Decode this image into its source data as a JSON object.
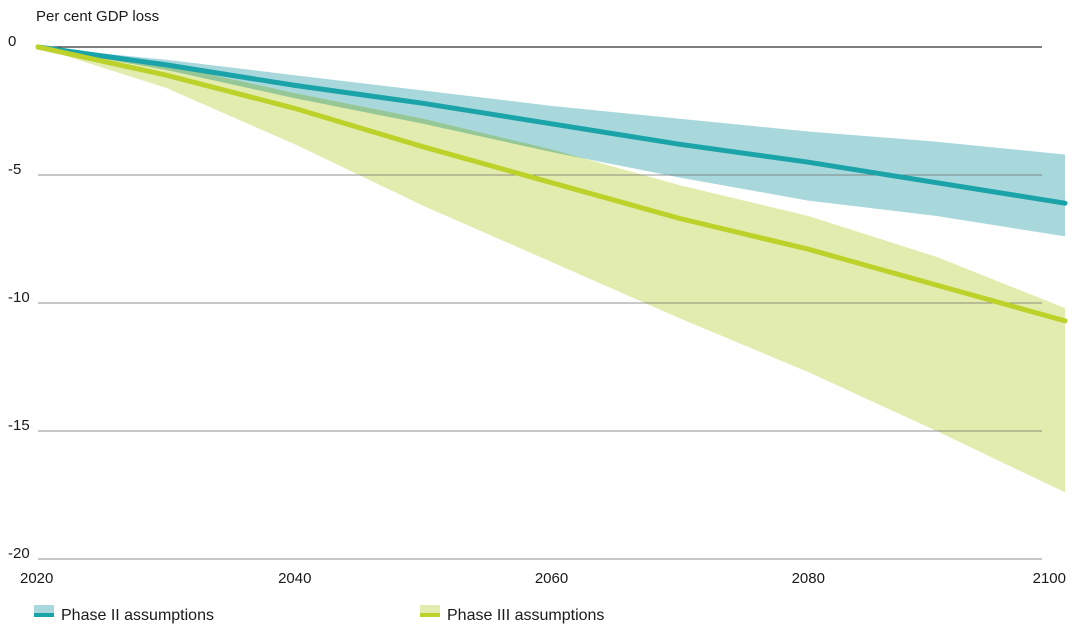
{
  "chart_data": {
    "type": "area",
    "title": "",
    "xlabel": "",
    "ylabel": "Per cent GDP loss",
    "xlim": [
      2020,
      2100
    ],
    "ylim": [
      -20,
      0
    ],
    "xticks": [
      "2020",
      "2040",
      "2060",
      "2080",
      "2100"
    ],
    "yticks": [
      "0",
      "-5",
      "-10",
      "-15",
      "-20"
    ],
    "grid": "horizontal",
    "legend_position": "bottom",
    "x": [
      2020,
      2030,
      2040,
      2050,
      2060,
      2070,
      2080,
      2090,
      2100
    ],
    "series": [
      {
        "name": "Phase II assumptions",
        "color": "#1aa3a8",
        "band_color": "#a9d8dc",
        "values": [
          0,
          -0.7,
          -1.5,
          -2.2,
          -3.0,
          -3.8,
          -4.5,
          -5.3,
          -6.1
        ],
        "band_upper": [
          0,
          -0.5,
          -1.1,
          -1.7,
          -2.3,
          -2.8,
          -3.3,
          -3.7,
          -4.2
        ],
        "band_lower": [
          0,
          -0.9,
          -2.0,
          -3.0,
          -4.1,
          -5.1,
          -6.0,
          -6.6,
          -7.4
        ]
      },
      {
        "name": "Phase III assumptions",
        "color": "#bcd22a",
        "band_color": "#e3ecaf",
        "values": [
          0,
          -1.1,
          -2.4,
          -3.9,
          -5.3,
          -6.7,
          -7.9,
          -9.3,
          -10.7
        ],
        "band_upper": [
          0,
          -0.7,
          -1.8,
          -2.8,
          -4.0,
          -5.4,
          -6.6,
          -8.2,
          -10.2
        ],
        "band_lower": [
          0,
          -1.6,
          -3.8,
          -6.2,
          -8.4,
          -10.6,
          -12.7,
          -15.0,
          -17.4
        ]
      }
    ]
  }
}
